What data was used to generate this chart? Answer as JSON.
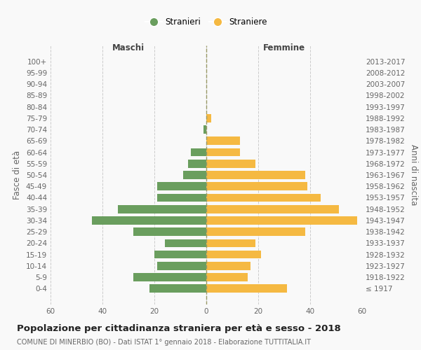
{
  "age_groups": [
    "100+",
    "95-99",
    "90-94",
    "85-89",
    "80-84",
    "75-79",
    "70-74",
    "65-69",
    "60-64",
    "55-59",
    "50-54",
    "45-49",
    "40-44",
    "35-39",
    "30-34",
    "25-29",
    "20-24",
    "15-19",
    "10-14",
    "5-9",
    "0-4"
  ],
  "birth_years": [
    "≤ 1917",
    "1918-1922",
    "1923-1927",
    "1928-1932",
    "1933-1937",
    "1938-1942",
    "1943-1947",
    "1948-1952",
    "1953-1957",
    "1958-1962",
    "1963-1967",
    "1968-1972",
    "1973-1977",
    "1978-1982",
    "1983-1987",
    "1988-1992",
    "1993-1997",
    "1998-2002",
    "2003-2007",
    "2008-2012",
    "2013-2017"
  ],
  "maschi": [
    0,
    0,
    0,
    0,
    0,
    0,
    1,
    0,
    6,
    7,
    9,
    19,
    19,
    34,
    44,
    28,
    16,
    20,
    19,
    28,
    22
  ],
  "femmine": [
    0,
    0,
    0,
    0,
    0,
    2,
    0,
    13,
    13,
    19,
    38,
    39,
    44,
    51,
    58,
    38,
    19,
    21,
    17,
    16,
    31
  ],
  "maschi_color": "#6a9e5e",
  "femmine_color": "#f5b942",
  "background_color": "#f9f9f9",
  "grid_color": "#cccccc",
  "title": "Popolazione per cittadinanza straniera per età e sesso - 2018",
  "subtitle": "COMUNE DI MINERBIO (BO) - Dati ISTAT 1° gennaio 2018 - Elaborazione TUTTITALIA.IT",
  "ylabel_left": "Fasce di età",
  "ylabel_right": "Anni di nascita",
  "xlabel_maschi": "Maschi",
  "xlabel_femmine": "Femmine",
  "legend_maschi": "Stranieri",
  "legend_femmine": "Straniere",
  "xlim": 60,
  "tick_fontsize": 7.5,
  "title_fontsize": 9.5,
  "subtitle_fontsize": 7,
  "axis_label_fontsize": 8.5,
  "legend_fontsize": 8.5
}
